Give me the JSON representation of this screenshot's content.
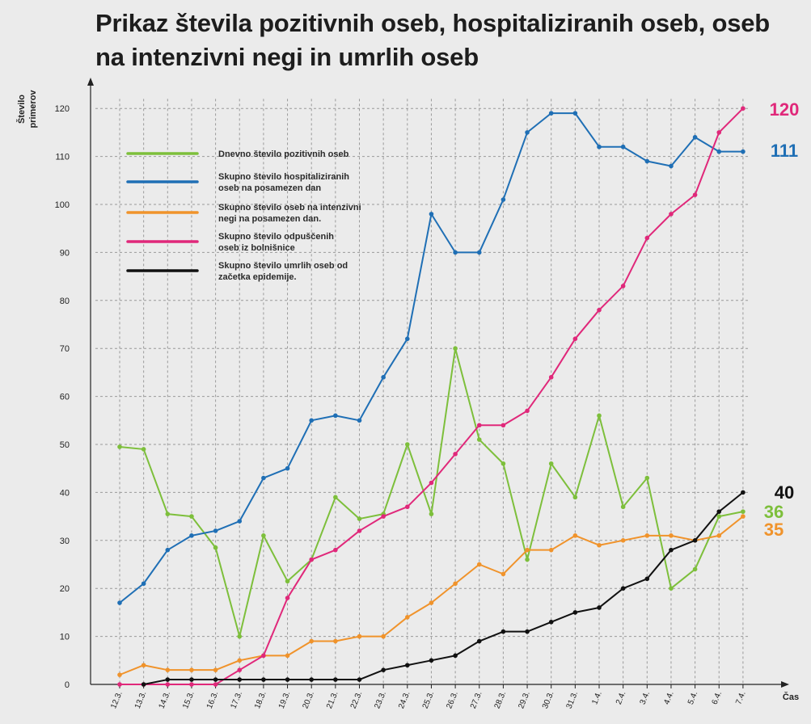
{
  "title_lines": [
    "Prikaz števila pozitivnih oseb, hospitaliziranih oseb, oseb",
    "na intenzivni negi in umrlih oseb"
  ],
  "chart_data": {
    "type": "line",
    "ylabel_lines": [
      "Število",
      "primerov"
    ],
    "xlabel": "Čas",
    "ylim": [
      0,
      125
    ],
    "yticks": [
      0,
      10,
      20,
      30,
      40,
      50,
      60,
      70,
      80,
      90,
      100,
      110,
      120
    ],
    "grid": true,
    "legend_position": "top-left",
    "categories": [
      "12.3.",
      "13.3.",
      "14.3.",
      "15.3.",
      "16.3.",
      "17.3.",
      "18.3.",
      "19.3.",
      "20.3.",
      "21.3.",
      "22.3.",
      "23.3.",
      "24.3.",
      "25.3.",
      "26.3.",
      "27.3.",
      "28.3.",
      "29.3.",
      "30.3.",
      "31.3.",
      "1.4.",
      "2.4.",
      "3.4.",
      "4.4.",
      "5.4.",
      "6.4.",
      "7.4."
    ],
    "series": [
      {
        "name_lines": [
          "Dnevno število pozitivnih oseb"
        ],
        "color": "#7dbf3b",
        "values": [
          49.5,
          49,
          35.5,
          35,
          28.5,
          10,
          31,
          21.5,
          26,
          39,
          34.5,
          35.5,
          50,
          35.5,
          70,
          51,
          46,
          26,
          46,
          39,
          56,
          37,
          43,
          20,
          24,
          35,
          36
        ],
        "end_label": "36"
      },
      {
        "name_lines": [
          "Skupno število hospitaliziranih",
          "oseb na posamezen dan"
        ],
        "color": "#1f6fb5",
        "values": [
          17,
          21,
          28,
          31,
          32,
          34,
          43,
          45,
          55,
          56,
          55,
          64,
          72,
          98,
          90,
          90,
          101,
          115,
          119,
          119,
          112,
          112,
          109,
          108,
          114,
          111,
          111
        ],
        "end_label": "111"
      },
      {
        "name_lines": [
          "Skupno število oseb na intenzivni",
          "negi na posamezen dan."
        ],
        "color": "#f0932b",
        "values": [
          2,
          4,
          3,
          3,
          3,
          5,
          6,
          6,
          9,
          9,
          10,
          10,
          14,
          17,
          21,
          25,
          23,
          28,
          28,
          31,
          29,
          30,
          31,
          31,
          30,
          31,
          35
        ],
        "end_label": "35"
      },
      {
        "name_lines": [
          "Skupno število odpuščenih",
          "oseb iz bolnišnice"
        ],
        "color": "#e0287a",
        "values": [
          0,
          0,
          0,
          0,
          0,
          3,
          6,
          18,
          26,
          28,
          32,
          35,
          37,
          42,
          48,
          54,
          54,
          57,
          64,
          72,
          78,
          83,
          93,
          98,
          102,
          115,
          120
        ],
        "end_label": "120"
      },
      {
        "name_lines": [
          "Skupno število umrlih oseb od",
          "začetka epidemije."
        ],
        "color": "#111111",
        "values": [
          null,
          0,
          1,
          1,
          1,
          1,
          1,
          1,
          1,
          1,
          1,
          3,
          4,
          5,
          6,
          9,
          11,
          11,
          13,
          15,
          16,
          20,
          22,
          28,
          30,
          36,
          40
        ],
        "end_label": "40"
      }
    ]
  }
}
